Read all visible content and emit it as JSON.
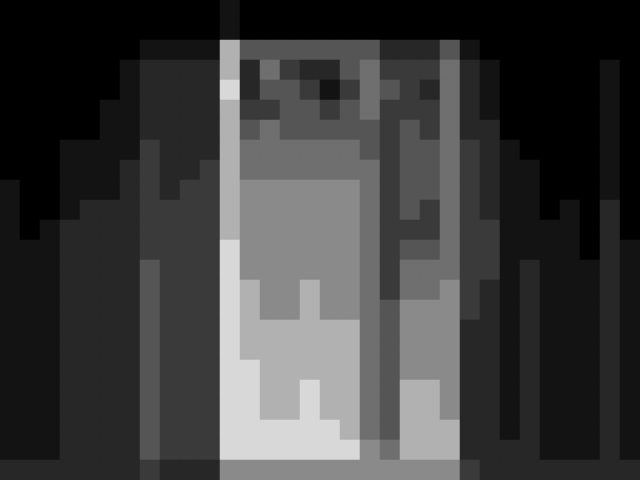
{
  "chart_data": {
    "type": "heatmap",
    "tick_labels": false,
    "color_range": [
      0,
      9
    ],
    "cells": [
      [
        0,
        0,
        0,
        0,
        0,
        0,
        0,
        0,
        0,
        0,
        0,
        1,
        0,
        0,
        0,
        0,
        0,
        0,
        0,
        0,
        0,
        0,
        0,
        0,
        0,
        0,
        0,
        0,
        0,
        0,
        0,
        0
      ],
      [
        0,
        0,
        0,
        0,
        0,
        0,
        0,
        0,
        0,
        0,
        0,
        1,
        0,
        0,
        0,
        0,
        0,
        0,
        0,
        0,
        0,
        0,
        0,
        0,
        0,
        0,
        0,
        0,
        0,
        0,
        0,
        0
      ],
      [
        0,
        0,
        0,
        0,
        0,
        0,
        0,
        1,
        1,
        1,
        1,
        7,
        4,
        4,
        4,
        4,
        4,
        4,
        4,
        2,
        2,
        2,
        4,
        1,
        0,
        0,
        0,
        0,
        0,
        0,
        0,
        0
      ],
      [
        0,
        0,
        0,
        0,
        0,
        0,
        1,
        2,
        2,
        2,
        2,
        7,
        2,
        5,
        3,
        2,
        2,
        4,
        5,
        3,
        3,
        3,
        5,
        2,
        1,
        0,
        0,
        0,
        0,
        0,
        1,
        0
      ],
      [
        0,
        0,
        0,
        0,
        0,
        0,
        1,
        2,
        2,
        2,
        2,
        8,
        2,
        4,
        4,
        3,
        1,
        3,
        5,
        4,
        3,
        2,
        5,
        2,
        1,
        0,
        0,
        0,
        0,
        0,
        1,
        0
      ],
      [
        0,
        0,
        0,
        0,
        0,
        1,
        1,
        2,
        2,
        2,
        2,
        7,
        3,
        3,
        4,
        4,
        3,
        4,
        5,
        3,
        3,
        3,
        5,
        2,
        1,
        0,
        0,
        0,
        0,
        0,
        1,
        0
      ],
      [
        0,
        0,
        0,
        0,
        0,
        1,
        1,
        2,
        2,
        2,
        2,
        7,
        4,
        5,
        4,
        4,
        4,
        4,
        4,
        3,
        4,
        3,
        5,
        2,
        2,
        0,
        0,
        0,
        0,
        0,
        1,
        0
      ],
      [
        0,
        0,
        0,
        1,
        1,
        1,
        1,
        3,
        2,
        2,
        2,
        7,
        5,
        5,
        5,
        5,
        5,
        5,
        4,
        3,
        4,
        4,
        5,
        3,
        2,
        1,
        0,
        0,
        0,
        0,
        1,
        0
      ],
      [
        0,
        0,
        0,
        1,
        1,
        1,
        2,
        3,
        2,
        2,
        3,
        7,
        5,
        5,
        5,
        5,
        5,
        5,
        5,
        3,
        4,
        4,
        5,
        3,
        2,
        1,
        1,
        0,
        0,
        0,
        1,
        0
      ],
      [
        1,
        0,
        0,
        1,
        1,
        1,
        2,
        3,
        2,
        3,
        3,
        7,
        6,
        6,
        6,
        6,
        6,
        6,
        5,
        3,
        4,
        4,
        5,
        3,
        2,
        1,
        1,
        0,
        0,
        0,
        1,
        0
      ],
      [
        1,
        0,
        0,
        1,
        2,
        2,
        2,
        3,
        3,
        3,
        3,
        7,
        6,
        6,
        6,
        6,
        6,
        6,
        5,
        3,
        4,
        3,
        5,
        3,
        2,
        1,
        1,
        0,
        1,
        0,
        2,
        0
      ],
      [
        1,
        0,
        1,
        2,
        2,
        2,
        2,
        3,
        3,
        3,
        3,
        7,
        6,
        6,
        6,
        6,
        6,
        6,
        5,
        3,
        3,
        3,
        5,
        3,
        3,
        1,
        1,
        1,
        1,
        0,
        2,
        0
      ],
      [
        1,
        1,
        1,
        2,
        2,
        2,
        2,
        3,
        3,
        3,
        3,
        8,
        6,
        6,
        6,
        6,
        6,
        6,
        5,
        3,
        4,
        4,
        5,
        3,
        3,
        1,
        1,
        1,
        1,
        0,
        2,
        1
      ],
      [
        1,
        1,
        1,
        2,
        2,
        2,
        2,
        4,
        3,
        3,
        3,
        8,
        6,
        6,
        6,
        6,
        6,
        6,
        5,
        3,
        5,
        5,
        5,
        3,
        3,
        1,
        2,
        1,
        1,
        1,
        2,
        1
      ],
      [
        1,
        1,
        1,
        2,
        2,
        2,
        2,
        4,
        3,
        3,
        3,
        8,
        7,
        6,
        6,
        7,
        6,
        6,
        5,
        3,
        5,
        5,
        6,
        3,
        2,
        1,
        2,
        1,
        1,
        1,
        2,
        1
      ],
      [
        1,
        1,
        1,
        2,
        2,
        2,
        2,
        4,
        3,
        3,
        3,
        8,
        7,
        6,
        6,
        7,
        6,
        6,
        5,
        4,
        6,
        6,
        6,
        3,
        2,
        1,
        2,
        1,
        1,
        1,
        2,
        1
      ],
      [
        1,
        1,
        1,
        2,
        2,
        2,
        2,
        4,
        3,
        3,
        3,
        8,
        7,
        7,
        7,
        7,
        7,
        7,
        5,
        4,
        6,
        6,
        6,
        2,
        2,
        1,
        2,
        1,
        1,
        1,
        2,
        1
      ],
      [
        1,
        1,
        1,
        2,
        2,
        2,
        2,
        4,
        3,
        3,
        3,
        8,
        7,
        7,
        7,
        7,
        7,
        7,
        5,
        4,
        6,
        6,
        6,
        2,
        2,
        1,
        2,
        1,
        1,
        1,
        2,
        1
      ],
      [
        1,
        1,
        1,
        2,
        2,
        2,
        2,
        4,
        3,
        3,
        3,
        8,
        8,
        7,
        7,
        7,
        7,
        7,
        5,
        4,
        6,
        6,
        6,
        2,
        2,
        1,
        2,
        1,
        1,
        1,
        2,
        1
      ],
      [
        1,
        1,
        1,
        2,
        2,
        2,
        2,
        4,
        3,
        3,
        3,
        8,
        8,
        7,
        7,
        8,
        7,
        7,
        5,
        4,
        7,
        7,
        6,
        2,
        2,
        1,
        2,
        1,
        1,
        1,
        2,
        1
      ],
      [
        1,
        1,
        1,
        2,
        2,
        2,
        2,
        4,
        3,
        3,
        3,
        8,
        8,
        7,
        7,
        8,
        7,
        7,
        5,
        4,
        7,
        7,
        6,
        2,
        2,
        1,
        2,
        1,
        1,
        1,
        2,
        1
      ],
      [
        1,
        1,
        1,
        2,
        2,
        2,
        2,
        4,
        3,
        3,
        3,
        8,
        8,
        8,
        8,
        8,
        8,
        7,
        5,
        4,
        7,
        7,
        7,
        2,
        2,
        1,
        2,
        1,
        1,
        1,
        2,
        1
      ],
      [
        1,
        1,
        1,
        2,
        2,
        2,
        2,
        4,
        3,
        3,
        3,
        8,
        8,
        8,
        8,
        8,
        8,
        8,
        6,
        5,
        7,
        7,
        7,
        2,
        2,
        2,
        2,
        1,
        1,
        1,
        2,
        1
      ],
      [
        2,
        2,
        2,
        2,
        2,
        2,
        2,
        3,
        2,
        2,
        2,
        6,
        6,
        6,
        6,
        6,
        6,
        6,
        6,
        6,
        6,
        6,
        6,
        3,
        2,
        2,
        2,
        2,
        2,
        2,
        2,
        2
      ]
    ]
  }
}
